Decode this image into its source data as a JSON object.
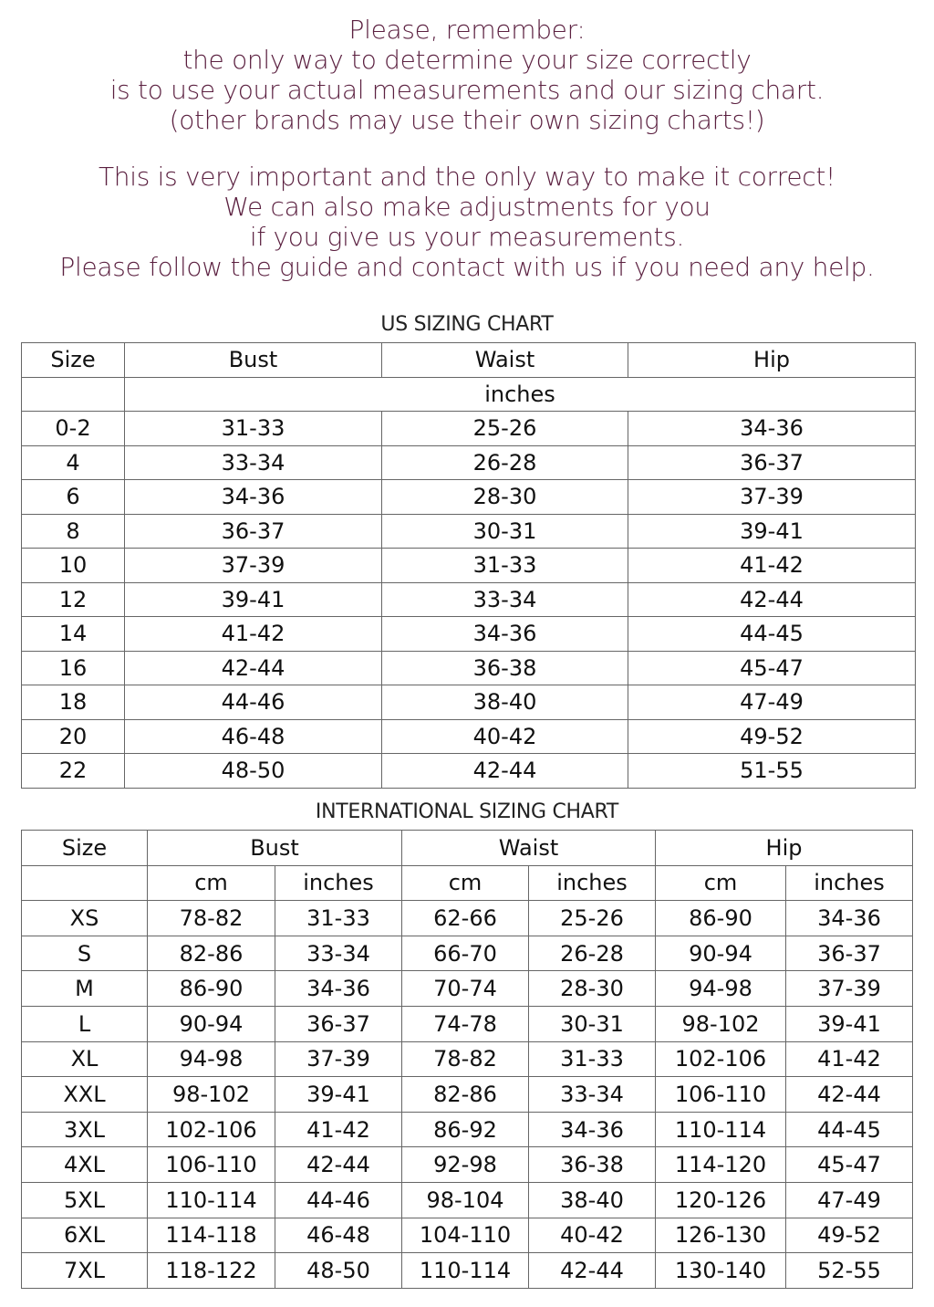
{
  "intro": {
    "paragraph1": [
      "Please, remember:",
      "the only way to determine your size correctly",
      "is to use your actual measurements and our sizing chart.",
      "(other brands may use their own sizing charts!)"
    ],
    "paragraph2": [
      "This is very important and the only way to make it correct!",
      "We can also make adjustments for you",
      "if you give us your measurements.",
      "Please follow the guide and contact with us if you need any help."
    ],
    "text_color": "#5b2040"
  },
  "us_chart": {
    "title": "US SIZING CHART",
    "headers": [
      "Size",
      "Bust",
      "Waist",
      "Hip"
    ],
    "unit": "inches",
    "rows": [
      [
        "0-2",
        "31-33",
        "25-26",
        "34-36"
      ],
      [
        "4",
        "33-34",
        "26-28",
        "36-37"
      ],
      [
        "6",
        "34-36",
        "28-30",
        "37-39"
      ],
      [
        "8",
        "36-37",
        "30-31",
        "39-41"
      ],
      [
        "10",
        "37-39",
        "31-33",
        "41-42"
      ],
      [
        "12",
        "39-41",
        "33-34",
        "42-44"
      ],
      [
        "14",
        "41-42",
        "34-36",
        "44-45"
      ],
      [
        "16",
        "42-44",
        "36-38",
        "45-47"
      ],
      [
        "18",
        "44-46",
        "38-40",
        "47-49"
      ],
      [
        "20",
        "46-48",
        "40-42",
        "49-52"
      ],
      [
        "22",
        "48-50",
        "42-44",
        "51-55"
      ]
    ]
  },
  "intl_chart": {
    "title": "INTERNATIONAL SIZING CHART",
    "headers": [
      "Size",
      "Bust",
      "Waist",
      "Hip"
    ],
    "subheaders": [
      "cm",
      "inches",
      "cm",
      "inches",
      "cm",
      "inches"
    ],
    "rows": [
      [
        "XS",
        "78-82",
        "31-33",
        "62-66",
        "25-26",
        "86-90",
        "34-36"
      ],
      [
        "S",
        "82-86",
        "33-34",
        "66-70",
        "26-28",
        "90-94",
        "36-37"
      ],
      [
        "M",
        "86-90",
        "34-36",
        "70-74",
        "28-30",
        "94-98",
        "37-39"
      ],
      [
        "L",
        "90-94",
        "36-37",
        "74-78",
        "30-31",
        "98-102",
        "39-41"
      ],
      [
        "XL",
        "94-98",
        "37-39",
        "78-82",
        "31-33",
        "102-106",
        "41-42"
      ],
      [
        "XXL",
        "98-102",
        "39-41",
        "82-86",
        "33-34",
        "106-110",
        "42-44"
      ],
      [
        "3XL",
        "102-106",
        "41-42",
        "86-92",
        "34-36",
        "110-114",
        "44-45"
      ],
      [
        "4XL",
        "106-110",
        "42-44",
        "92-98",
        "36-38",
        "114-120",
        "45-47"
      ],
      [
        "5XL",
        "110-114",
        "44-46",
        "98-104",
        "38-40",
        "120-126",
        "47-49"
      ],
      [
        "6XL",
        "114-118",
        "46-48",
        "104-110",
        "40-42",
        "126-130",
        "49-52"
      ],
      [
        "7XL",
        "118-122",
        "48-50",
        "110-114",
        "42-44",
        "130-140",
        "52-55"
      ]
    ]
  }
}
